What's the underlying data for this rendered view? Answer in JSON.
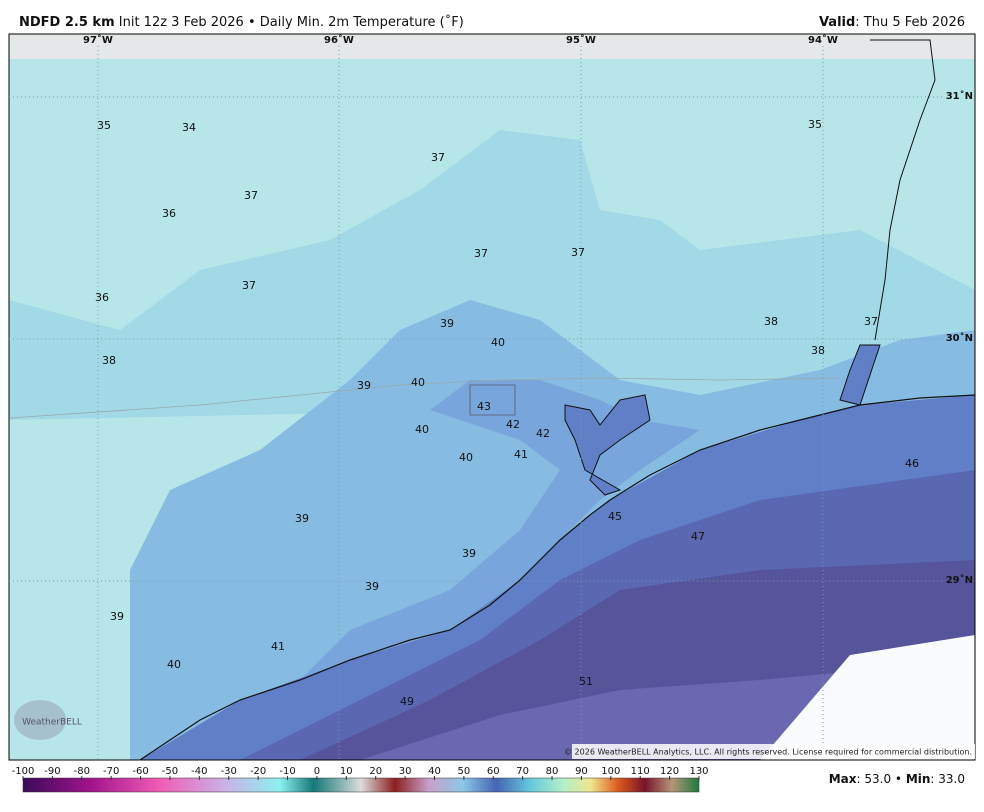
{
  "header": {
    "model": "NDFD 2.5 km",
    "init": "Init 12z 3 Feb 2026",
    "separator": "•",
    "product": "Daily Min. 2m Temperature (˚F)",
    "valid_label": "Valid",
    "valid_date": ": Thu 5 Feb 2026"
  },
  "map": {
    "longitudes": [
      "97˚W",
      "96˚W",
      "95˚W",
      "94˚W"
    ],
    "latitudes": [
      "31˚N",
      "30˚N",
      "29˚N"
    ],
    "stations": [
      35,
      34,
      37,
      35,
      37,
      36,
      37,
      37,
      36,
      37,
      39,
      40,
      38,
      37,
      38,
      38,
      39,
      40,
      43,
      42,
      42,
      40,
      41,
      40,
      46,
      45,
      47,
      39,
      39,
      39,
      39,
      41,
      40,
      51,
      49
    ],
    "copyright": "© 2026 WeatherBELL Analytics, LLC. All rights reserved. License required for commercial distribution.",
    "logo": "WeatherBELL"
  },
  "colorbar": {
    "ticks": [
      -100,
      -90,
      -80,
      -70,
      -60,
      -50,
      -40,
      -30,
      -20,
      -10,
      0,
      10,
      20,
      30,
      40,
      50,
      60,
      70,
      80,
      90,
      100,
      110,
      120,
      130
    ]
  },
  "footer": {
    "max_label": "Max",
    "max_value": ": 53.0",
    "separator": "•",
    "min_label": "Min",
    "min_value": ": 33.0"
  }
}
